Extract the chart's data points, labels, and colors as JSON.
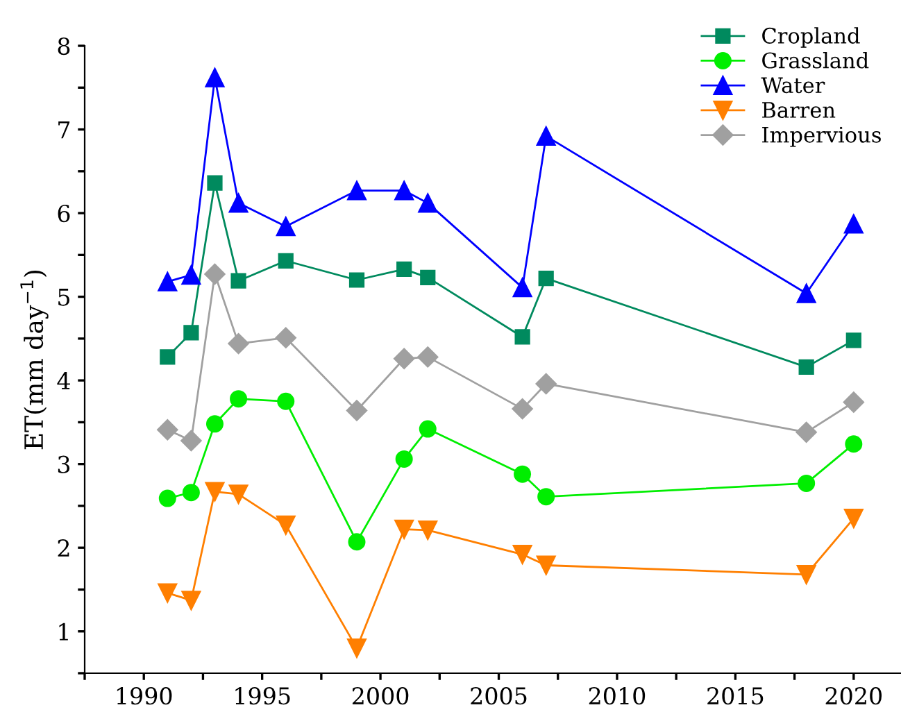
{
  "chart_data": {
    "type": "line",
    "ylabel": "ET(mm day$^{−1}$)",
    "x": [
      1991,
      1992,
      1993,
      1994,
      1996,
      1999,
      2001,
      2002,
      2006,
      2007,
      2018,
      2020
    ],
    "xlim": [
      1987.5,
      2022
    ],
    "ylim": [
      0.5,
      8
    ],
    "xticks": [
      {
        "value": 1987.5,
        "label": null
      },
      1990,
      {
        "value": 1992.5,
        "label": null
      },
      1995,
      {
        "value": 1997.5,
        "label": null
      },
      2000,
      {
        "value": 2002.5,
        "label": null
      },
      2005,
      {
        "value": 2007.5,
        "label": null
      },
      2010,
      {
        "value": 2012.5,
        "label": null
      },
      2015,
      {
        "value": 2017.5,
        "label": null
      },
      2020
    ],
    "yticks": [
      {
        "value": 0.5,
        "label": null
      },
      1,
      {
        "value": 1.5,
        "label": null
      },
      2,
      {
        "value": 2.5,
        "label": null
      },
      3,
      {
        "value": 3.5,
        "label": null
      },
      4,
      {
        "value": 4.5,
        "label": null
      },
      5,
      {
        "value": 5.5,
        "label": null
      },
      6,
      {
        "value": 6.5,
        "label": null
      },
      7,
      {
        "value": 7.5,
        "label": null
      },
      8
    ],
    "legend": "top right",
    "grid": false,
    "series": [
      {
        "name": "Cropland",
        "color": "#008a5e",
        "marker": "square",
        "values": [
          4.28,
          4.57,
          6.36,
          5.19,
          5.43,
          5.2,
          5.33,
          5.23,
          4.52,
          5.22,
          4.16,
          4.48
        ]
      },
      {
        "name": "Grassland",
        "color": "#00ee00",
        "marker": "circle",
        "values": [
          2.59,
          2.66,
          3.48,
          3.78,
          3.75,
          2.07,
          3.06,
          3.42,
          2.88,
          2.61,
          2.77,
          3.24
        ]
      },
      {
        "name": "Water",
        "color": "#0000ff",
        "marker": "triangle",
        "values": [
          5.18,
          5.26,
          7.62,
          6.12,
          5.84,
          6.27,
          6.27,
          6.12,
          5.11,
          6.92,
          5.04,
          5.87
        ]
      },
      {
        "name": "Barren",
        "color": "#ff7f00",
        "marker": "triangle_down",
        "values": [
          1.46,
          1.37,
          2.67,
          2.64,
          2.27,
          0.8,
          2.22,
          2.21,
          1.92,
          1.79,
          1.68,
          2.35
        ]
      },
      {
        "name": "Impervious",
        "color": "#a0a0a0",
        "marker": "diamond",
        "values": [
          3.41,
          3.28,
          5.27,
          4.44,
          4.51,
          3.64,
          4.26,
          4.28,
          3.66,
          3.96,
          3.38,
          3.74
        ]
      }
    ]
  }
}
